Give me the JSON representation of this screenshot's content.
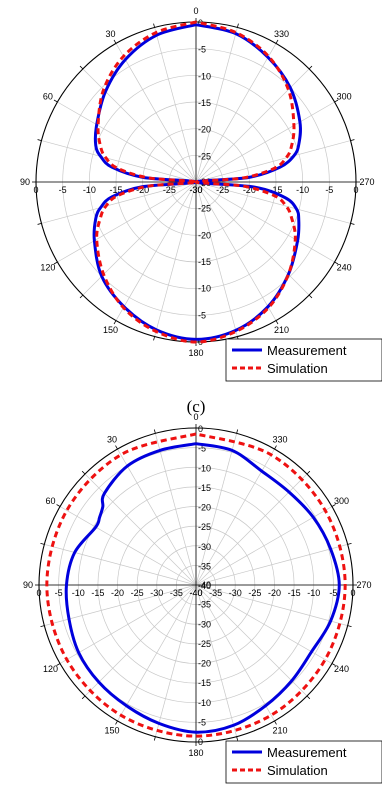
{
  "chart_data": [
    {
      "type": "polar-line",
      "angle_ticks": [
        "0",
        "30",
        "60",
        "90",
        "120",
        "150",
        "180",
        "210",
        "240",
        "270",
        "300",
        "330"
      ],
      "radial_ticks": [
        0,
        -5,
        -10,
        -15,
        -20,
        -25,
        -30,
        -35,
        -40
      ],
      "rlim": [
        -30,
        0
      ],
      "angle_labels_shown": [
        "0",
        "30",
        "330",
        "60",
        "300",
        "90",
        "270",
        "120",
        "240",
        "150",
        "210",
        "180"
      ],
      "radial_labels_top": [
        "0",
        "-5",
        "-10",
        "-15",
        "-20",
        "-25",
        "-30"
      ],
      "radial_labels_bottom": [
        "-30",
        "-25",
        "-20",
        "-15",
        "-10",
        "-5",
        "0"
      ],
      "radial_labels_left": [
        "0",
        "-5",
        "-10",
        "-15",
        "-20",
        "-25",
        "-30"
      ],
      "radial_labels_right": [
        "-30",
        "-25",
        "-20",
        "-15",
        "-10",
        "-5",
        "0"
      ],
      "legend": {
        "position": "bottom-right",
        "entries": [
          "Measurement",
          "Simulation"
        ]
      },
      "series": [
        {
          "name": "Measurement",
          "color": "#0000dd",
          "style": "solid",
          "theta": [
            0,
            15,
            30,
            45,
            60,
            70,
            75,
            80,
            85,
            90,
            95,
            100,
            105,
            110,
            120,
            135,
            150,
            165,
            180,
            195,
            210,
            225,
            240,
            250,
            255,
            260,
            265,
            270,
            275,
            280,
            285,
            290,
            300,
            315,
            330,
            345,
            360
          ],
          "r": [
            -0.5,
            -1.5,
            -3.5,
            -6,
            -8.5,
            -10,
            -11.5,
            -14,
            -20,
            -30,
            -20,
            -14,
            -11.5,
            -10,
            -8,
            -5,
            -3,
            -1.3,
            -0.5,
            -1.2,
            -3,
            -5.5,
            -8,
            -9.5,
            -10.5,
            -13,
            -19,
            -30,
            -20,
            -14,
            -11,
            -9.5,
            -7.5,
            -5,
            -3,
            -1.2,
            -0.5
          ]
        },
        {
          "name": "Simulation",
          "color": "#ee1111",
          "style": "dashed",
          "theta": [
            0,
            15,
            30,
            45,
            60,
            70,
            75,
            80,
            85,
            90,
            95,
            100,
            105,
            110,
            120,
            135,
            150,
            165,
            180,
            195,
            210,
            225,
            240,
            250,
            255,
            260,
            265,
            270,
            275,
            280,
            285,
            290,
            300,
            315,
            330,
            345,
            360
          ],
          "r": [
            0,
            -1,
            -2.8,
            -5.5,
            -8.8,
            -11,
            -12.5,
            -15,
            -21,
            -30,
            -21,
            -15,
            -12.5,
            -11,
            -8.5,
            -5.5,
            -2.8,
            -1,
            0,
            -1,
            -2.8,
            -5.5,
            -8.5,
            -11,
            -12.5,
            -15,
            -21,
            -30,
            -21,
            -15,
            -12.5,
            -11,
            -8.8,
            -5.5,
            -2.8,
            -1,
            0
          ]
        }
      ]
    },
    {
      "type": "polar-line",
      "angle_ticks": [
        "0",
        "30",
        "60",
        "90",
        "120",
        "150",
        "180",
        "210",
        "240",
        "270",
        "300",
        "330"
      ],
      "radial_ticks": [
        0,
        -5,
        -10,
        -15,
        -20,
        -25,
        -30,
        -35,
        -40
      ],
      "rlim": [
        -40,
        0
      ],
      "angle_labels_shown": [
        "0",
        "30",
        "330",
        "60",
        "300",
        "90",
        "270",
        "120",
        "240",
        "150",
        "210",
        "180"
      ],
      "radial_labels_top": [
        "0",
        "-5",
        "-10",
        "-15",
        "-20",
        "-25",
        "-30",
        "-35",
        "-40"
      ],
      "radial_labels_bottom": [
        "-40",
        "-35",
        "-30",
        "-25",
        "-20",
        "-15",
        "-10",
        "-5"
      ],
      "radial_labels_left": [
        "0",
        "-5",
        "-10",
        "-15",
        "-20",
        "-25",
        "-30",
        "-35",
        "-40"
      ],
      "radial_labels_right": [
        "-40",
        "-35",
        "-30",
        "-25",
        "-20",
        "-15",
        "-10",
        "-5",
        "0"
      ],
      "legend": {
        "position": "bottom-right",
        "entries": [
          "Measurement",
          "Simulation"
        ]
      },
      "series": [
        {
          "name": "Measurement",
          "color": "#0000dd",
          "style": "solid",
          "theta": [
            0,
            15,
            30,
            45,
            50,
            55,
            60,
            75,
            90,
            105,
            120,
            135,
            150,
            165,
            180,
            195,
            210,
            225,
            240,
            255,
            270,
            285,
            300,
            315,
            330,
            345,
            360
          ],
          "r": [
            -4,
            -4.5,
            -5,
            -7,
            -9,
            -10,
            -10.5,
            -8,
            -7,
            -6.5,
            -5.5,
            -5,
            -4.5,
            -3.5,
            -2.5,
            -3,
            -4.5,
            -5.5,
            -6,
            -4.5,
            -3.5,
            -4.5,
            -5.5,
            -6.5,
            -6.5,
            -4.5,
            -4
          ]
        },
        {
          "name": "Simulation",
          "color": "#ee1111",
          "style": "dashed",
          "theta": [
            0,
            30,
            60,
            90,
            120,
            150,
            180,
            210,
            240,
            270,
            300,
            330,
            360
          ],
          "r": [
            -1.5,
            -1.7,
            -2,
            -2,
            -2,
            -1.7,
            -1.5,
            -1.7,
            -2,
            -2,
            -2,
            -1.7,
            -1.5
          ]
        }
      ]
    }
  ],
  "caption": "(c)"
}
